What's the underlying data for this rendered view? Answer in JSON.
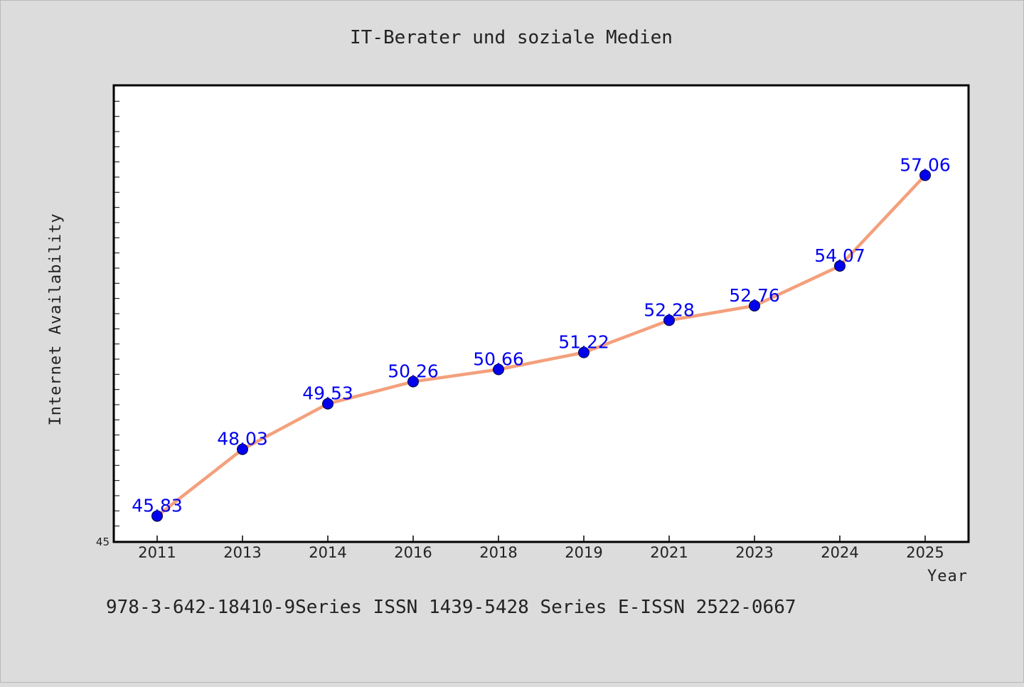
{
  "chart_data": {
    "type": "line",
    "title": "IT-Berater und soziale Medien",
    "xlabel": "Year",
    "ylabel": "Internet Availability",
    "categories": [
      "2011",
      "2013",
      "2014",
      "2016",
      "2018",
      "2019",
      "2021",
      "2023",
      "2024",
      "2025"
    ],
    "series": [
      {
        "values": [
          45.83,
          48.03,
          49.53,
          50.26,
          50.66,
          51.22,
          52.28,
          52.76,
          54.07,
          57.06
        ],
        "labels": [
          "45.83",
          "48.03",
          "49.53",
          "50.26",
          "50.66",
          "51.22",
          "52.28",
          "52.76",
          "54.07",
          "57.06"
        ],
        "line_color": "#f4a07c",
        "marker_color": "#0000ee",
        "label_color": "#0000ee"
      }
    ],
    "ylim": [
      45,
      60
    ],
    "ytick_labels": [
      "45"
    ],
    "grid": false,
    "legend": "none",
    "footer": "978-3-642-18410-9Series ISSN 1439-5428 Series E-ISSN 2522-0667"
  }
}
